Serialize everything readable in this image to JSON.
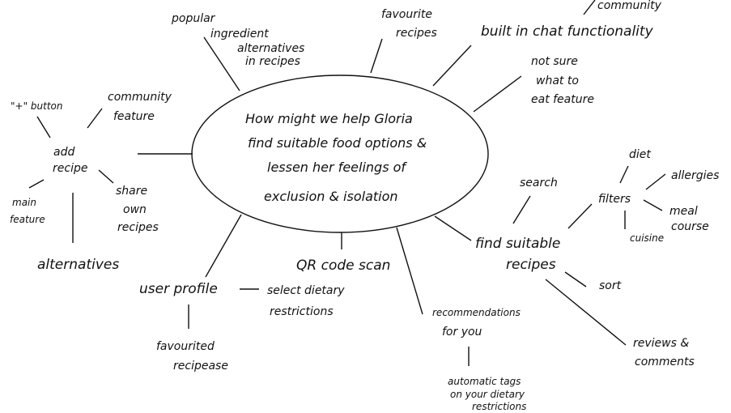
{
  "center": {
    "lines": [
      "How might we help Gloria",
      "find suitable food options &",
      "lessen her feelings of",
      "exclusion & isolation"
    ]
  },
  "nodes": {
    "community_top": "community",
    "popular_ingredient": [
      "popular",
      "ingredient",
      "alternatives",
      "in recipes"
    ],
    "favourite_recipes": [
      "favourite",
      "recipes"
    ],
    "built_in_chat": "built in chat functionality",
    "not_sure": [
      "not sure",
      "what to",
      "eat feature"
    ],
    "plus_button": "\"+\" button",
    "community_feature": [
      "community",
      "feature"
    ],
    "add_recipe": [
      "add",
      "recipe"
    ],
    "share_own_recipes": [
      "share",
      "own",
      "recipes"
    ],
    "main_feature": [
      "main",
      "feature"
    ],
    "alternatives": "alternatives",
    "search": "search",
    "filters": "filters",
    "diet": "diet",
    "allergies": "allergies",
    "meal_course": [
      "meal",
      "course"
    ],
    "cuisine": "cuisine",
    "find_suitable_recipes": [
      "find suitable",
      "recipes"
    ],
    "sort": "sort",
    "reviews_comments": [
      "reviews &",
      "comments"
    ],
    "qr_code_scan": "QR code scan",
    "user_profile": "user profile",
    "select_dietary": [
      "select dietary",
      "restrictions"
    ],
    "favourited_recipes": [
      "favourited",
      "recipease"
    ],
    "recommendations": [
      "recommendations",
      "for you"
    ],
    "automatic_tags": [
      "automatic tags",
      "on your dietary",
      "restrictions"
    ]
  }
}
